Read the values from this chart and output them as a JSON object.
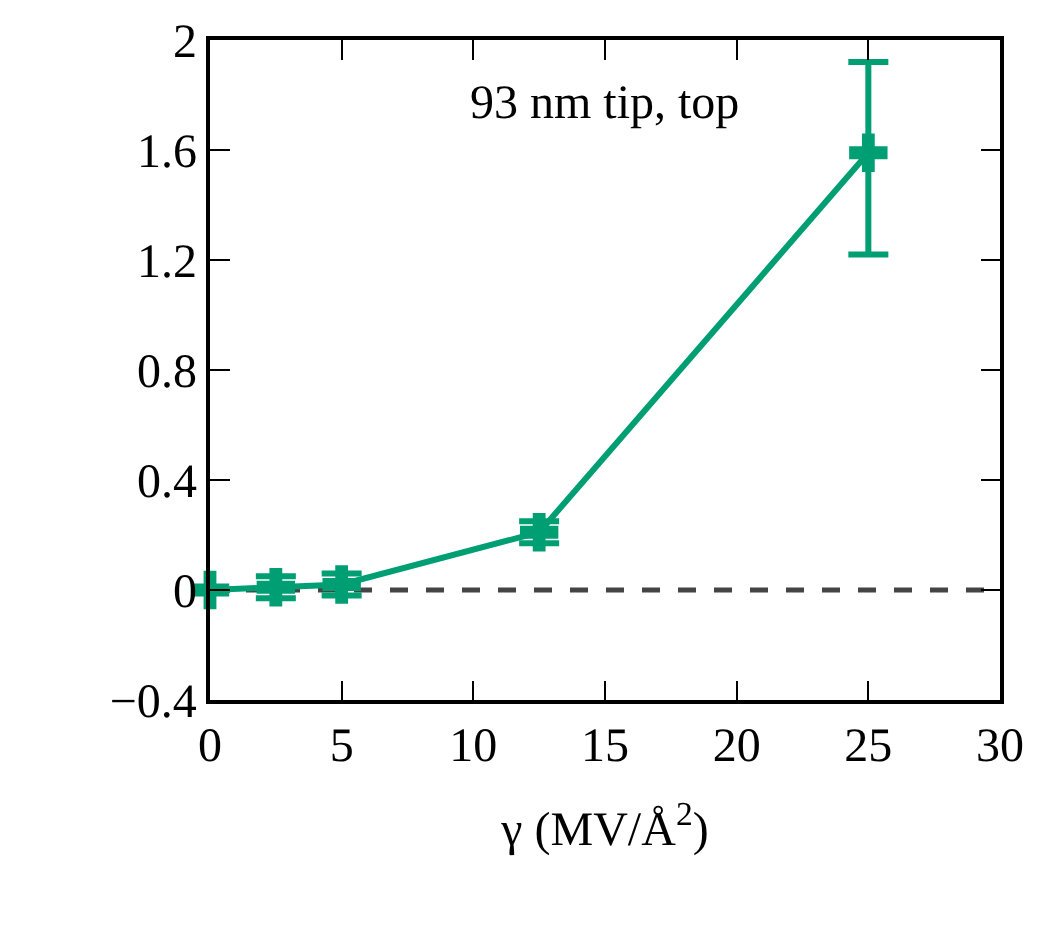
{
  "chart_data": {
    "type": "line",
    "xlabel": "γ (MV/Å$^{2}$)",
    "annotations": [
      "93 nm tip, top"
    ],
    "x": [
      0,
      2.5,
      5,
      12.5,
      25
    ],
    "series": [
      {
        "color": "#009e73",
        "values": [
          0,
          0.01,
          0.02,
          0.21,
          1.59
        ],
        "errors": [
          null,
          0.04,
          0.04,
          0.04,
          [
            1.22,
            1.92
          ]
        ]
      }
    ],
    "xlim": [
      0,
      30
    ],
    "xticks": [
      0,
      5,
      10,
      15,
      20,
      25,
      30
    ],
    "ylim": [
      -0.4,
      2
    ],
    "yticks": [
      -0.4,
      0,
      0.4,
      0.8,
      1.2,
      1.6,
      2
    ],
    "ref_lines": [
      {
        "axis": "y",
        "value": 0,
        "color": "#444444",
        "line_style": "dashed"
      }
    ],
    "grid": false,
    "marker": "cross",
    "line_style": "solid"
  }
}
